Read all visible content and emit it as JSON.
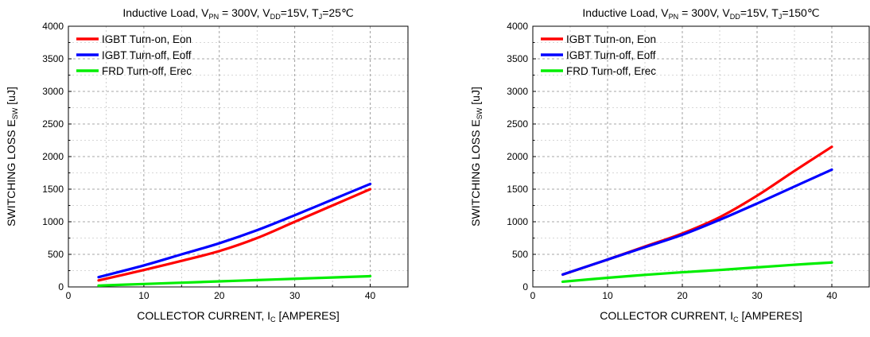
{
  "chart_data": [
    {
      "type": "line",
      "title": {
        "parts": [
          {
            "t": "Inductive Load, V"
          },
          {
            "t": "PN",
            "sub": true
          },
          {
            "t": " = 300V, V"
          },
          {
            "t": "DD",
            "sub": true
          },
          {
            "t": "=15V, T"
          },
          {
            "t": "J",
            "sub": true
          },
          {
            "t": "=25℃"
          }
        ]
      },
      "xlabel": {
        "parts": [
          {
            "t": "COLLECTOR CURRENT, I"
          },
          {
            "t": "C",
            "sub": true
          },
          {
            "t": " [AMPERES]"
          }
        ]
      },
      "ylabel": {
        "parts": [
          {
            "t": "SWITCHING LOSS E"
          },
          {
            "t": "SW",
            "sub": true
          },
          {
            "t": " [uJ]"
          }
        ]
      },
      "xlim": [
        0,
        45
      ],
      "ylim": [
        0,
        4000
      ],
      "x_ticks": [
        0,
        10,
        20,
        30,
        40
      ],
      "y_ticks": [
        0,
        500,
        1000,
        1500,
        2000,
        2500,
        3000,
        3500,
        4000
      ],
      "grid": true,
      "legend_position": "top-left",
      "series": [
        {
          "name": "IGBT Turn-on, Eon",
          "color": "#ff0000",
          "x": [
            4,
            10,
            15,
            20,
            25,
            30,
            35,
            40
          ],
          "y": [
            100,
            260,
            400,
            550,
            750,
            1000,
            1250,
            1500
          ]
        },
        {
          "name": "IGBT Turn-off, Eoff",
          "color": "#0000ff",
          "x": [
            4,
            10,
            15,
            20,
            25,
            30,
            35,
            40
          ],
          "y": [
            150,
            330,
            500,
            670,
            870,
            1100,
            1340,
            1580
          ]
        },
        {
          "name": "FRD Turn-off, Erec",
          "color": "#00ee00",
          "x": [
            4,
            10,
            15,
            20,
            25,
            30,
            35,
            40
          ],
          "y": [
            20,
            45,
            65,
            85,
            105,
            125,
            145,
            165
          ]
        }
      ]
    },
    {
      "type": "line",
      "title": {
        "parts": [
          {
            "t": "Inductive Load, V"
          },
          {
            "t": "PN",
            "sub": true
          },
          {
            "t": " = 300V, V"
          },
          {
            "t": "DD",
            "sub": true
          },
          {
            "t": "=15V, T"
          },
          {
            "t": "J",
            "sub": true
          },
          {
            "t": "=150℃"
          }
        ]
      },
      "xlabel": {
        "parts": [
          {
            "t": "COLLECTOR CURRENT, I"
          },
          {
            "t": "C",
            "sub": true
          },
          {
            "t": " [AMPERES]"
          }
        ]
      },
      "ylabel": {
        "parts": [
          {
            "t": "SWITCHING LOSS E"
          },
          {
            "t": "SW",
            "sub": true
          },
          {
            "t": " [uJ]"
          }
        ]
      },
      "xlim": [
        0,
        45
      ],
      "ylim": [
        0,
        4000
      ],
      "x_ticks": [
        0,
        10,
        20,
        30,
        40
      ],
      "y_ticks": [
        0,
        500,
        1000,
        1500,
        2000,
        2500,
        3000,
        3500,
        4000
      ],
      "grid": true,
      "legend_position": "top-left",
      "series": [
        {
          "name": "IGBT Turn-on, Eon",
          "color": "#ff0000",
          "x": [
            4,
            10,
            15,
            20,
            25,
            30,
            35,
            40
          ],
          "y": [
            190,
            420,
            620,
            820,
            1070,
            1400,
            1780,
            2150
          ]
        },
        {
          "name": "IGBT Turn-off, Eoff",
          "color": "#0000ff",
          "x": [
            4,
            10,
            15,
            20,
            25,
            30,
            35,
            40
          ],
          "y": [
            190,
            420,
            610,
            800,
            1030,
            1280,
            1540,
            1800
          ]
        },
        {
          "name": "FRD Turn-off, Erec",
          "color": "#00ee00",
          "x": [
            4,
            10,
            15,
            20,
            25,
            30,
            35,
            40
          ],
          "y": [
            80,
            140,
            185,
            225,
            260,
            300,
            340,
            375
          ]
        }
      ]
    }
  ]
}
